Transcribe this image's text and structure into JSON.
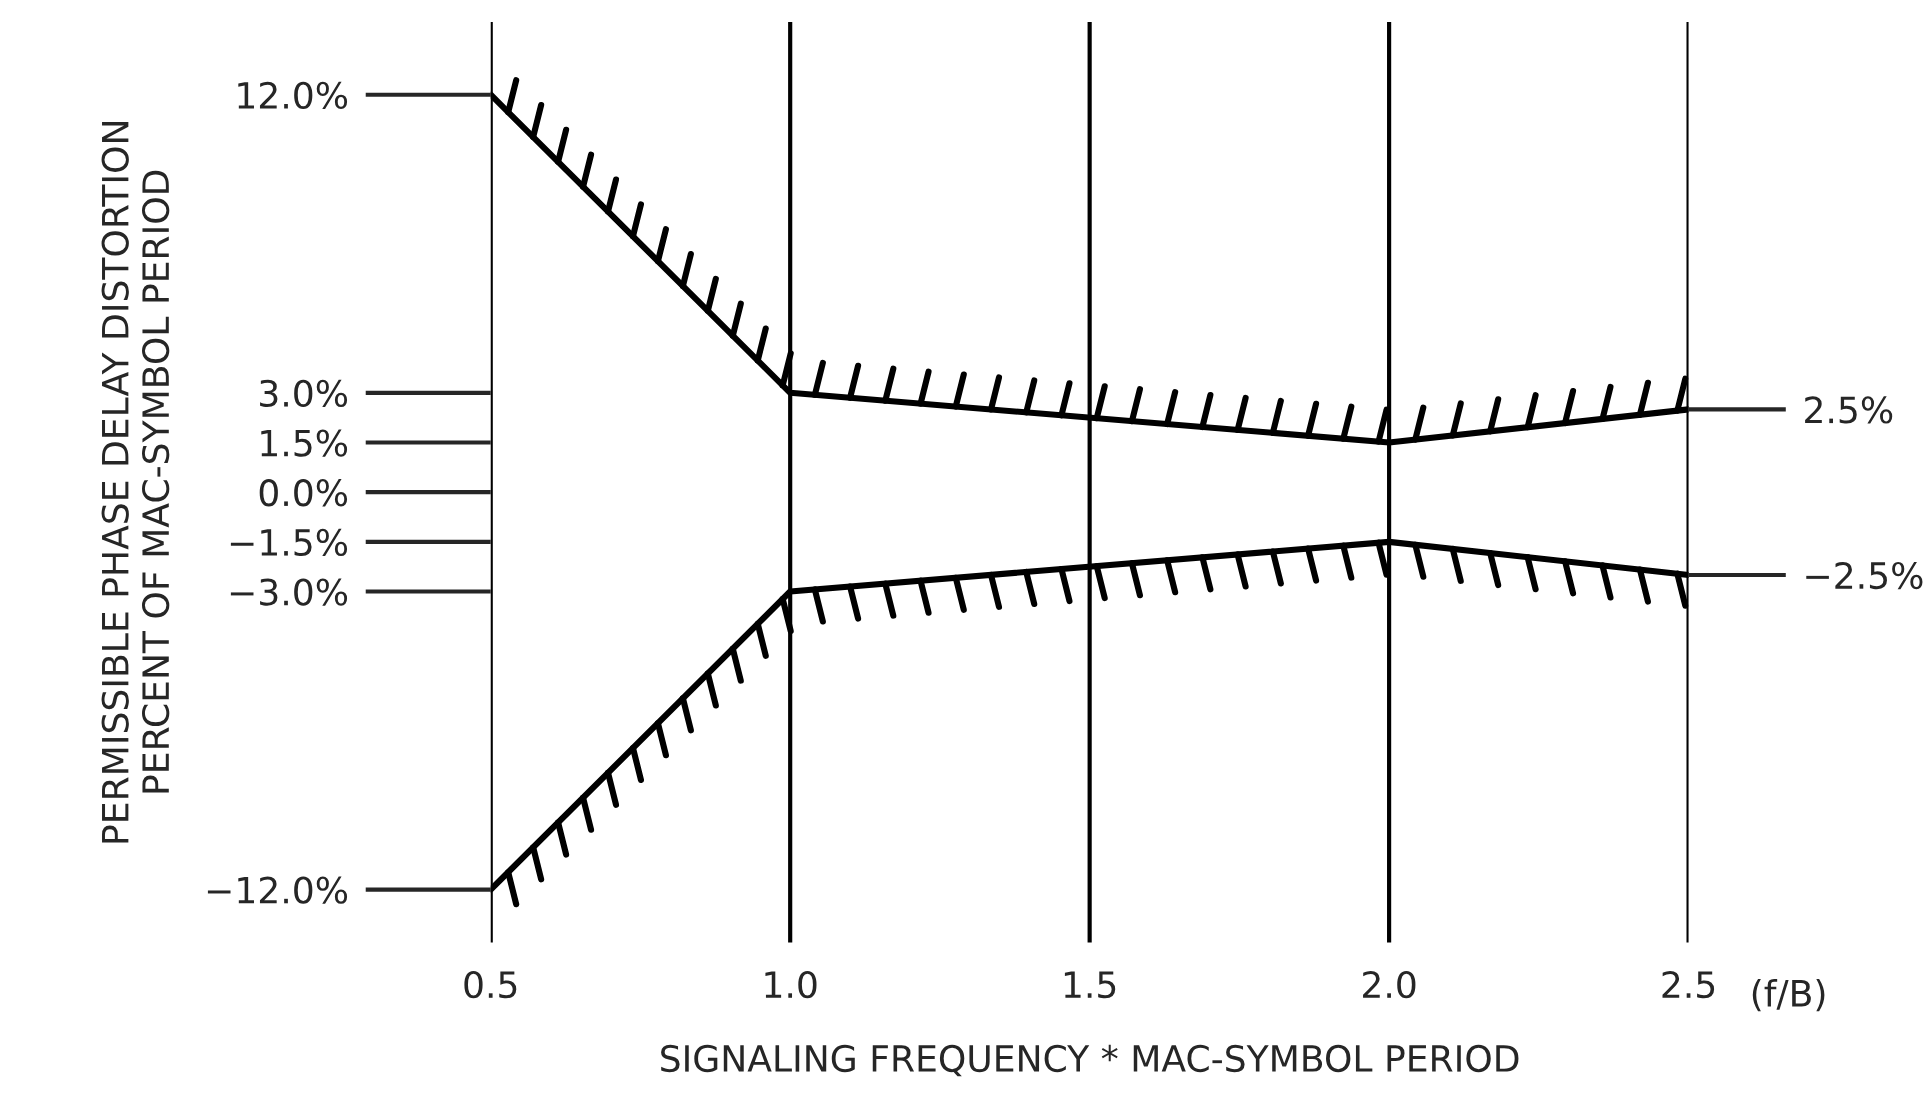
{
  "chart_data": {
    "type": "line",
    "xlabel": "SIGNALING FREQUENCY * MAC-SYMBOL PERIOD",
    "ylabel": "PERMISSIBLE PHASE DELAY DISTORTION\nPERCENT OF MAC-SYMBOL PERIOD",
    "x": [
      0.5,
      1.0,
      2.0,
      2.5
    ],
    "series": [
      {
        "color": "#000000",
        "values": [
          12.0,
          3.0,
          1.5,
          2.5
        ]
      },
      {
        "color": "#000000",
        "values": [
          -12.0,
          -3.0,
          -1.5,
          -2.5
        ]
      }
    ],
    "xlim": [
      0.5,
      2.5
    ],
    "xticks": [
      {
        "value": 0.5,
        "label": "0.5"
      },
      {
        "value": 1.0,
        "label": "1.0"
      },
      {
        "value": 1.5,
        "label": "1.5"
      },
      {
        "value": 2.0,
        "label": "2.0"
      },
      {
        "value": 2.5,
        "label": "2.5"
      }
    ],
    "ylim": [
      -13.6,
      14.2
    ],
    "yticks": [
      {
        "value": 12,
        "label": "12.0%"
      },
      {
        "value": 3,
        "label": "3.0%"
      },
      {
        "value": 1.5,
        "label": "1.5%"
      },
      {
        "value": 0,
        "label": "0.0%"
      },
      {
        "value": -1.5,
        "label": "−1.5%"
      },
      {
        "value": -3,
        "label": "−3.0%"
      },
      {
        "value": -12,
        "label": "−12.0%"
      }
    ],
    "y2lim": [
      -13.6,
      14.2
    ],
    "y2ticks": [
      {
        "value": 2.5,
        "label": "2.5%"
      },
      {
        "value": -2.5,
        "label": "−2.5%"
      }
    ],
    "annotations": [
      "(f/B)"
    ],
    "grid": "x",
    "legend": false,
    "marker": "none",
    "line_style": "solid"
  }
}
